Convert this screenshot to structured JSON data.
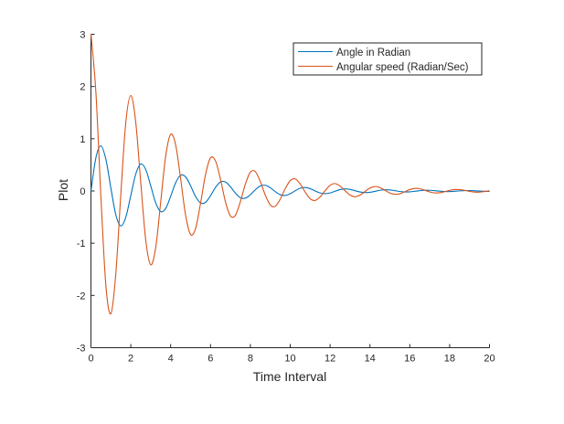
{
  "chart_data": {
    "type": "line",
    "title": "",
    "xlabel": "Time Interval",
    "ylabel": "Plot",
    "xlim": [
      0,
      20
    ],
    "ylim": [
      -3,
      3
    ],
    "xticks": [
      0,
      2,
      4,
      6,
      8,
      10,
      12,
      14,
      16,
      18,
      20
    ],
    "yticks": [
      -3,
      -2,
      -1,
      0,
      1,
      2,
      3
    ],
    "grid": false,
    "legend_position": "top-right",
    "x_step": 0.25,
    "series": [
      {
        "name": "Angle in Radian",
        "color": "#0072BD",
        "values": [
          0,
          0.639,
          0.864,
          0.604,
          0.055,
          -0.46,
          -0.669,
          -0.5,
          -0.085,
          0.326,
          0.516,
          0.41,
          0.099,
          -0.228,
          -0.395,
          -0.334,
          -0.102,
          0.157,
          0.301,
          0.27,
          0.099,
          -0.105,
          -0.229,
          -0.217,
          -0.091,
          0.068,
          0.173,
          0.173,
          0.081,
          -0.042,
          -0.129,
          -0.137,
          -0.072,
          0.024,
          0.096,
          0.109,
          0.062,
          -0.012,
          -0.071,
          -0.086,
          -0.052,
          0.004,
          0.052,
          0.067,
          0.045,
          0.001,
          -0.037,
          -0.052,
          -0.037,
          -0.004,
          0.027,
          0.04,
          0.03,
          0.006,
          -0.019,
          -0.03,
          -0.025,
          -0.007,
          0.013,
          0.023,
          0.02,
          0.006,
          -0.009,
          -0.018,
          -0.016,
          -0.006,
          0.006,
          0.014,
          0.013,
          0.006,
          -0.004,
          -0.01,
          -0.011,
          -0.005,
          0.002,
          0.008,
          0.008,
          0.004,
          -0.001,
          -0.006,
          -0.007
        ]
      },
      {
        "name": "Angular speed (Radian/Sec)",
        "color": "#D95319",
        "values": [
          3.009,
          1.875,
          -0.12,
          -1.816,
          -2.349,
          -1.573,
          -0.053,
          1.317,
          1.827,
          1.308,
          0.157,
          -0.943,
          -1.413,
          -1.081,
          -0.211,
          0.667,
          1.085,
          0.884,
          0.235,
          -0.464,
          -0.833,
          -0.718,
          -0.235,
          0.315,
          0.634,
          0.576,
          0.223,
          -0.209,
          -0.479,
          -0.464,
          -0.202,
          0.133,
          0.361,
          0.37,
          0.181,
          -0.081,
          -0.268,
          -0.292,
          -0.157,
          0.044,
          0.198,
          0.232,
          0.136,
          -0.02,
          -0.147,
          -0.181,
          -0.114,
          0.004,
          0.108,
          0.142,
          0.096,
          0.006,
          -0.077,
          -0.111,
          -0.079,
          -0.011,
          0.056,
          0.085,
          0.065,
          0.014,
          -0.039,
          -0.063,
          -0.053,
          -0.015,
          0.027,
          0.05,
          0.044,
          0.015,
          -0.018,
          -0.037,
          -0.034,
          -0.013,
          0.012,
          0.028,
          0.026,
          0.013,
          -0.007,
          -0.021,
          -0.021,
          -0.011,
          0.005
        ]
      }
    ]
  }
}
